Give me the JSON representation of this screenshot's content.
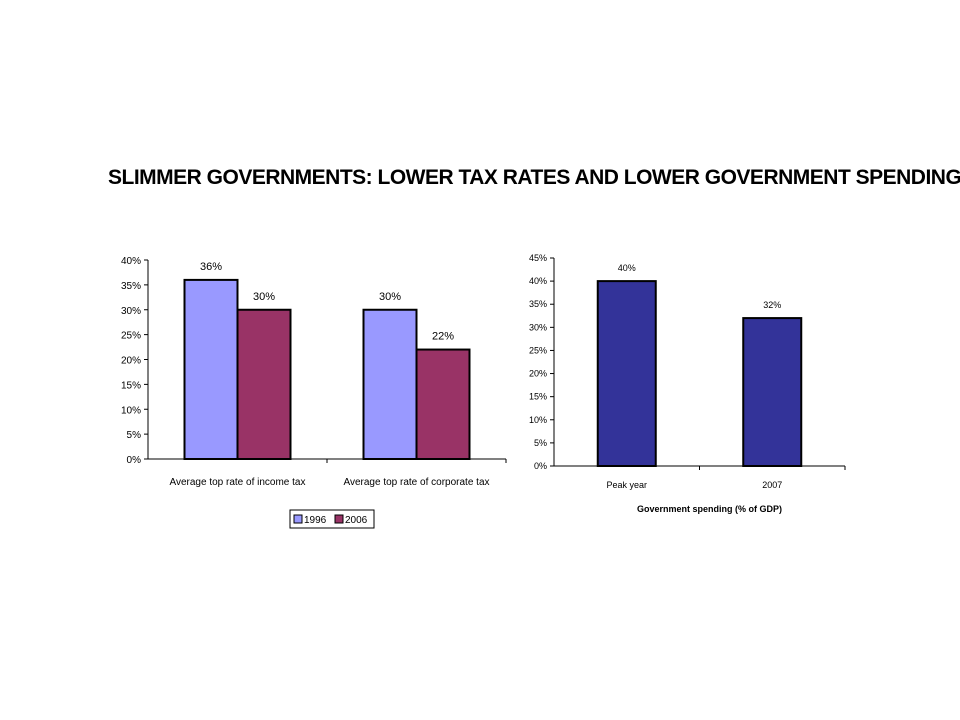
{
  "title": "SLIMMER GOVERNMENTS: LOWER TAX RATES AND LOWER GOVERNMENT SPENDING",
  "colors": {
    "c1996": "#9999ff",
    "c2006": "#993366",
    "gov": "#333399"
  },
  "chart_data": [
    {
      "type": "bar",
      "title": "",
      "xlabel": "",
      "ylabel": "",
      "ylim": [
        0,
        40
      ],
      "y_ticks": [
        "0%",
        "5%",
        "10%",
        "15%",
        "20%",
        "25%",
        "30%",
        "35%",
        "40%"
      ],
      "categories": [
        "Average top rate of income tax",
        "Average top rate of corporate tax"
      ],
      "series": [
        {
          "name": "1996",
          "values": [
            36,
            30
          ],
          "labels": [
            "36%",
            "30%"
          ],
          "color": "#9999ff"
        },
        {
          "name": "2006",
          "values": [
            30,
            22
          ],
          "labels": [
            "30%",
            "22%"
          ],
          "color": "#993366"
        }
      ],
      "legend": "bottom-center",
      "grid": false
    },
    {
      "type": "bar",
      "title": "",
      "xlabel": "Government spending (% of GDP)",
      "ylabel": "",
      "ylim": [
        0,
        45
      ],
      "y_ticks": [
        "0%",
        "5%",
        "10%",
        "15%",
        "20%",
        "25%",
        "30%",
        "35%",
        "40%",
        "45%"
      ],
      "categories": [
        "Peak year",
        "2007"
      ],
      "series": [
        {
          "values": [
            40,
            32
          ],
          "labels": [
            "40%",
            "32%"
          ],
          "color": "#333399"
        }
      ],
      "grid": false
    }
  ]
}
